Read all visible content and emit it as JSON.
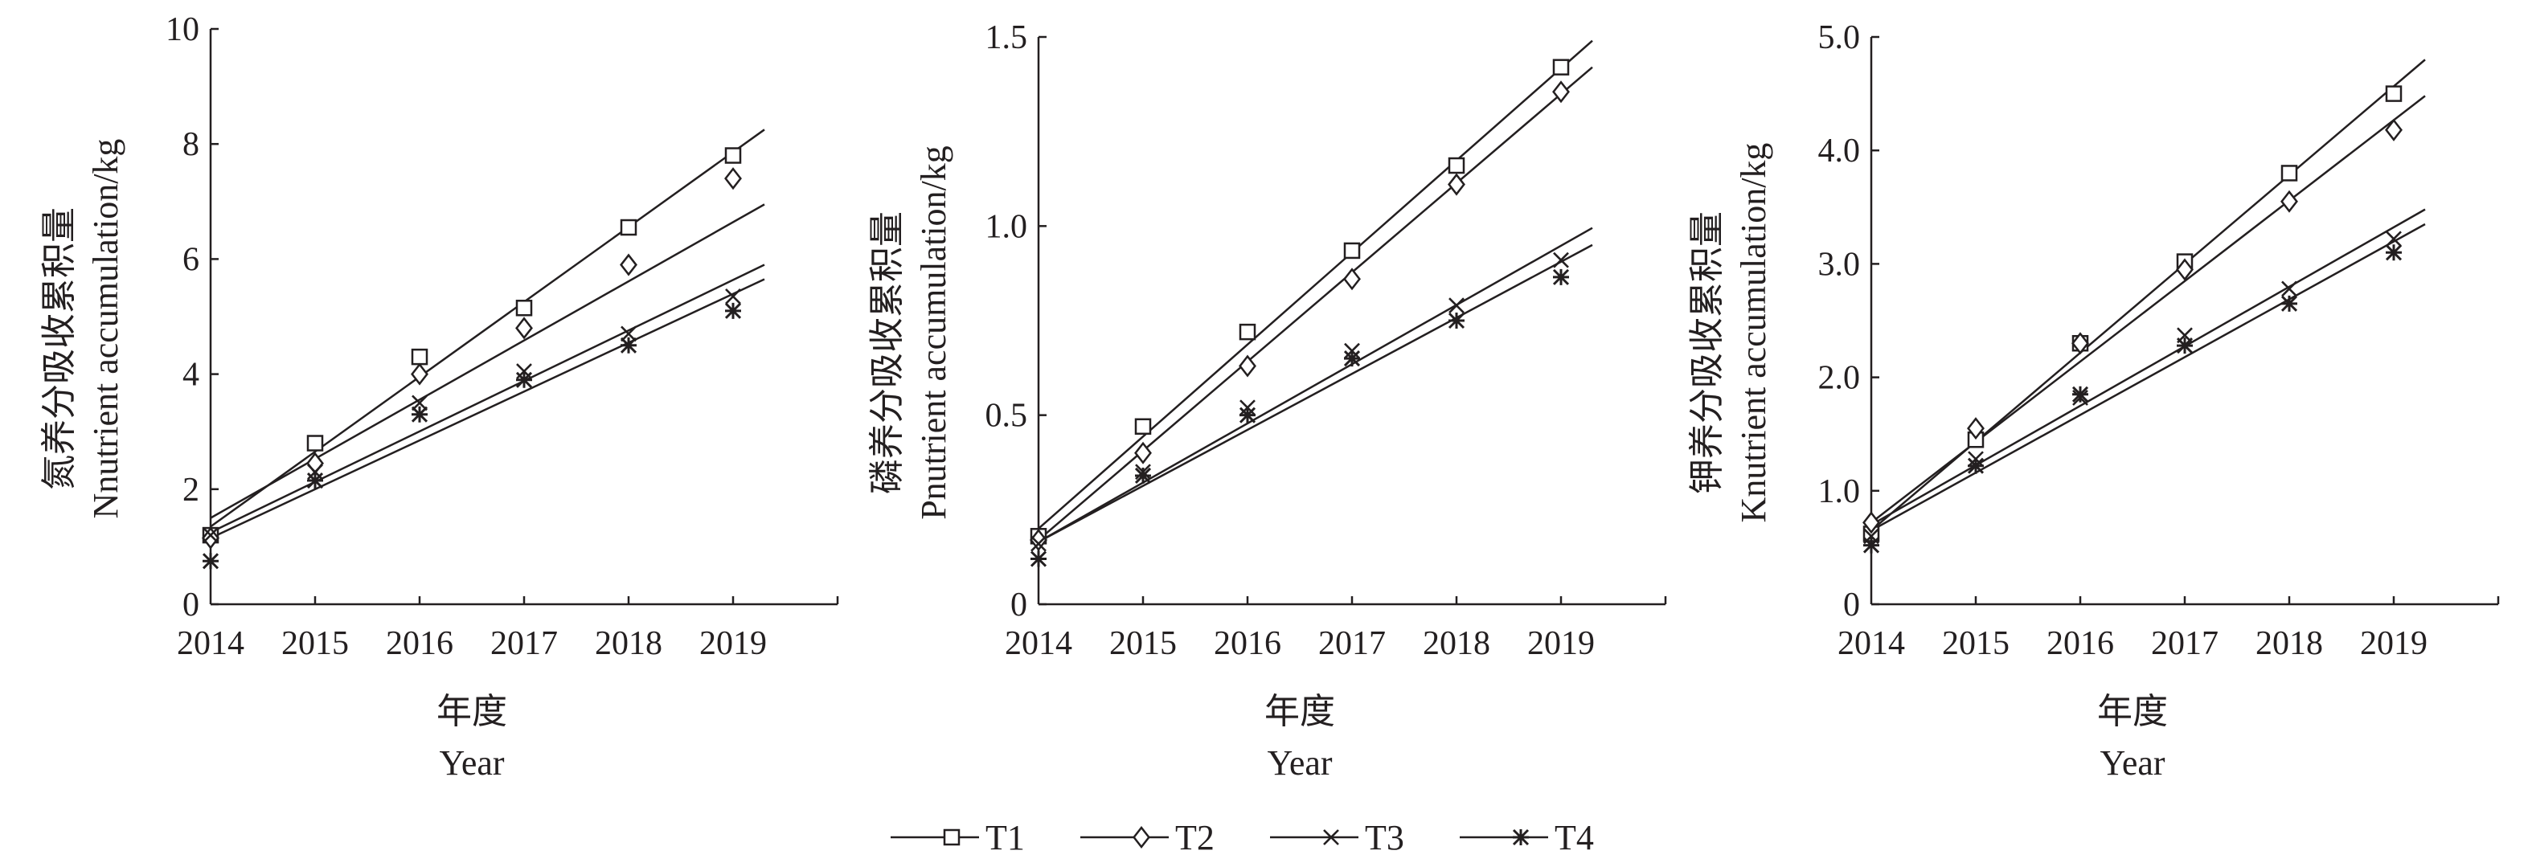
{
  "chart_data": [
    {
      "type": "scatter",
      "ylabel_zh": "氮养分吸收累积量",
      "ylabel_en": "Nnutrient accumulation/kg",
      "xlabel_zh": "年度",
      "xlabel_en": "Year",
      "categories": [
        "2014",
        "2015",
        "2016",
        "2017",
        "2018",
        "2019"
      ],
      "yticks": [
        "0",
        "2",
        "4",
        "6",
        "8",
        "10"
      ],
      "ylim": [
        0,
        10
      ],
      "series": [
        {
          "name": "T1",
          "values": [
            1.2,
            2.8,
            4.3,
            5.15,
            6.55,
            7.8
          ]
        },
        {
          "name": "T2",
          "values": [
            1.15,
            2.45,
            4.0,
            4.8,
            5.9,
            7.4
          ]
        },
        {
          "name": "T3",
          "values": [
            1.2,
            2.3,
            3.5,
            4.05,
            4.7,
            5.35
          ]
        },
        {
          "name": "T4",
          "values": [
            0.75,
            2.15,
            3.3,
            3.9,
            4.5,
            5.1
          ]
        }
      ],
      "trendlines": [
        {
          "series": "T1",
          "start": 1.35,
          "end": 8.25
        },
        {
          "series": "T2",
          "start": 1.5,
          "end": 6.95
        },
        {
          "series": "T3",
          "start": 1.25,
          "end": 5.9
        },
        {
          "series": "T4",
          "start": 1.15,
          "end": 5.65
        }
      ]
    },
    {
      "type": "scatter",
      "ylabel_zh": "磷养分吸收累积量",
      "ylabel_en": "Pnutrient accumulation/kg",
      "xlabel_zh": "年度",
      "xlabel_en": "Year",
      "categories": [
        "2014",
        "2015",
        "2016",
        "2017",
        "2018",
        "2019"
      ],
      "yticks": [
        "0",
        "0.5",
        "1.0",
        "1.5"
      ],
      "ylim": [
        0,
        1.5
      ],
      "series": [
        {
          "name": "T1",
          "values": [
            0.18,
            0.47,
            0.72,
            0.935,
            1.16,
            1.42
          ]
        },
        {
          "name": "T2",
          "values": [
            0.17,
            0.4,
            0.63,
            0.86,
            1.11,
            1.355
          ]
        },
        {
          "name": "T3",
          "values": [
            0.16,
            0.35,
            0.52,
            0.67,
            0.79,
            0.91
          ]
        },
        {
          "name": "T4",
          "values": [
            0.12,
            0.34,
            0.5,
            0.65,
            0.75,
            0.865
          ]
        }
      ],
      "trendlines": [
        {
          "series": "T1",
          "start": 0.2,
          "end": 1.49
        },
        {
          "series": "T2",
          "start": 0.17,
          "end": 1.42
        },
        {
          "series": "T3",
          "start": 0.165,
          "end": 0.995
        },
        {
          "series": "T4",
          "start": 0.165,
          "end": 0.95
        }
      ]
    },
    {
      "type": "scatter",
      "ylabel_zh": "钾养分吸收累积量",
      "ylabel_en": "Knutrient accumulation/kg",
      "xlabel_zh": "年度",
      "xlabel_en": "Year",
      "categories": [
        "2014",
        "2015",
        "2016",
        "2017",
        "2018",
        "2019"
      ],
      "yticks": [
        "0",
        "1.0",
        "2.0",
        "3.0",
        "4.0",
        "5.0"
      ],
      "ylim": [
        0,
        5
      ],
      "series": [
        {
          "name": "T1",
          "values": [
            0.62,
            1.45,
            2.3,
            3.02,
            3.8,
            4.5
          ]
        },
        {
          "name": "T2",
          "values": [
            0.72,
            1.55,
            2.3,
            2.95,
            3.55,
            4.18
          ]
        },
        {
          "name": "T3",
          "values": [
            0.6,
            1.28,
            1.82,
            2.37,
            2.78,
            3.22
          ]
        },
        {
          "name": "T4",
          "values": [
            0.52,
            1.22,
            1.85,
            2.28,
            2.65,
            3.1
          ]
        }
      ],
      "trendlines": [
        {
          "series": "T1",
          "start": 0.65,
          "end": 4.8
        },
        {
          "series": "T2",
          "start": 0.72,
          "end": 4.48
        },
        {
          "series": "T3",
          "start": 0.7,
          "end": 3.48
        },
        {
          "series": "T4",
          "start": 0.65,
          "end": 3.35
        }
      ]
    }
  ],
  "legend": {
    "placement": "bottom-center",
    "items": [
      {
        "label": "T1",
        "marker": "square"
      },
      {
        "label": "T2",
        "marker": "diamond"
      },
      {
        "label": "T3",
        "marker": "cross"
      },
      {
        "label": "T4",
        "marker": "asterisk"
      }
    ]
  },
  "colors": {
    "ink": "#231f20",
    "background": "#ffffff"
  }
}
